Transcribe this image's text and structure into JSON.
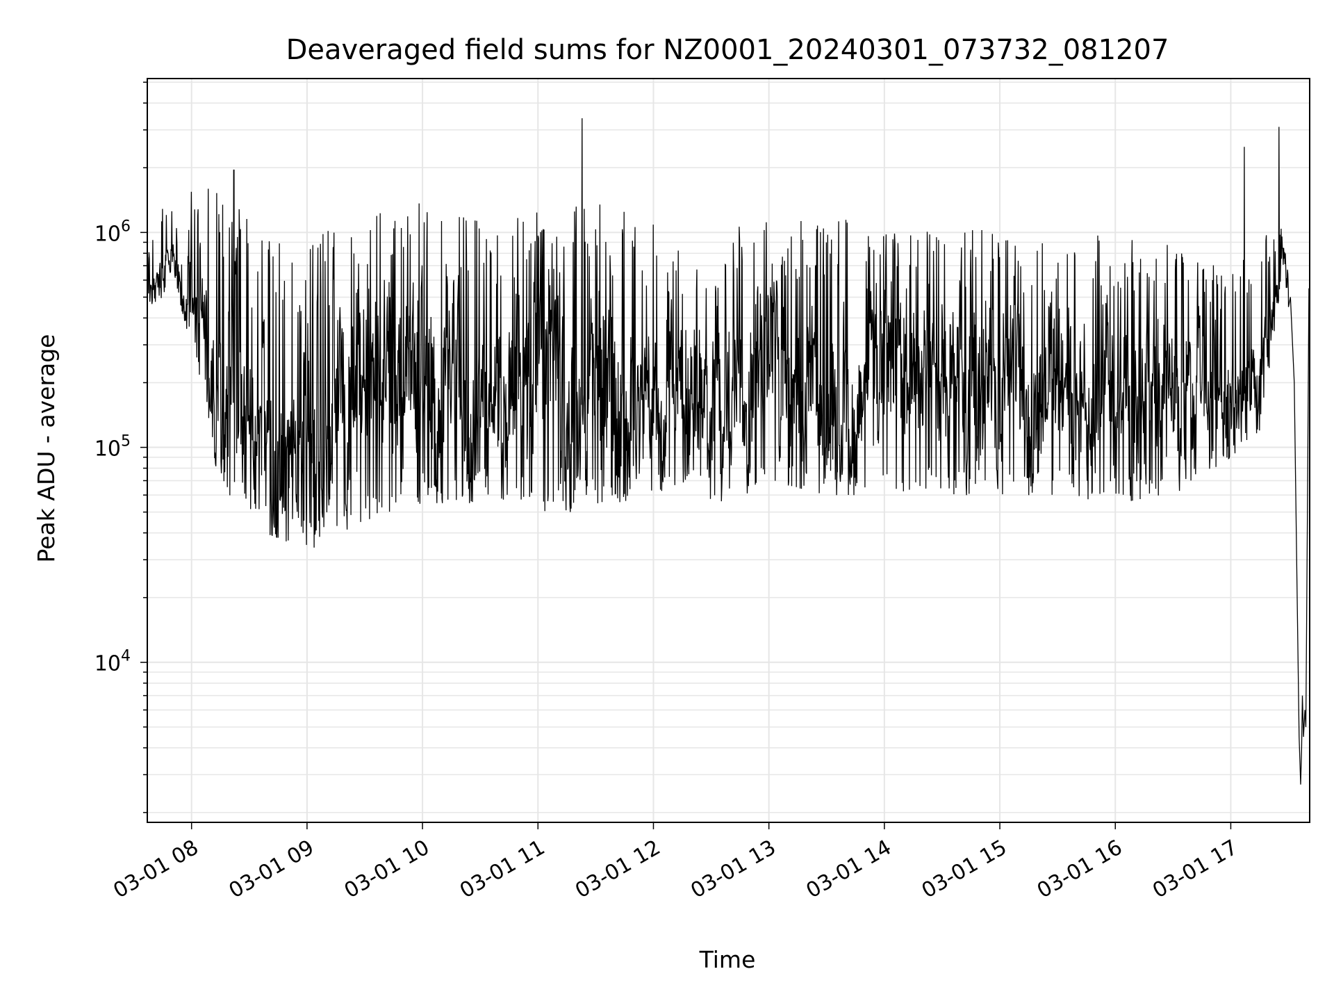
{
  "chart_data": {
    "type": "line",
    "title": "Deaveraged field sums for NZ0001_20240301_073732_081207",
    "xlabel": "Time",
    "ylabel": "Peak ADU - average",
    "y_scale": "log",
    "grid": true,
    "xlim": [
      "2024-03-01 07:37",
      "2024-03-01 17:41"
    ],
    "ylim": [
      1800,
      5200000
    ],
    "x_ticks": [
      {
        "value": "2024-03-01 08:00",
        "label": "03-01 08"
      },
      {
        "value": "2024-03-01 09:00",
        "label": "03-01 09"
      },
      {
        "value": "2024-03-01 10:00",
        "label": "03-01 10"
      },
      {
        "value": "2024-03-01 11:00",
        "label": "03-01 11"
      },
      {
        "value": "2024-03-01 12:00",
        "label": "03-01 12"
      },
      {
        "value": "2024-03-01 13:00",
        "label": "03-01 13"
      },
      {
        "value": "2024-03-01 14:00",
        "label": "03-01 14"
      },
      {
        "value": "2024-03-01 15:00",
        "label": "03-01 15"
      },
      {
        "value": "2024-03-01 16:00",
        "label": "03-01 16"
      },
      {
        "value": "2024-03-01 17:00",
        "label": "03-01 17"
      }
    ],
    "y_ticks": [
      {
        "value": 10000,
        "base": "10",
        "exp": "4"
      },
      {
        "value": 100000,
        "base": "10",
        "exp": "5"
      },
      {
        "value": 1000000,
        "base": "10",
        "exp": "6"
      }
    ],
    "series": [
      {
        "color": "#000000",
        "envelope": [
          {
            "x": "2024-03-01 07:37",
            "low": 450000,
            "high": 800000
          },
          {
            "x": "2024-03-01 07:45",
            "low": 500000,
            "high": 1300000
          },
          {
            "x": "2024-03-01 07:50",
            "low": 700000,
            "high": 1450000
          },
          {
            "x": "2024-03-01 07:55",
            "low": 420000,
            "high": 700000
          },
          {
            "x": "2024-03-01 08:00",
            "low": 300000,
            "high": 1600000
          },
          {
            "x": "2024-03-01 08:08",
            "low": 150000,
            "high": 1700000
          },
          {
            "x": "2024-03-01 08:15",
            "low": 60000,
            "high": 1500000
          },
          {
            "x": "2024-03-01 08:30",
            "low": 42000,
            "high": 1300000
          },
          {
            "x": "2024-03-01 08:45",
            "low": 38000,
            "high": 900000
          },
          {
            "x": "2024-03-01 09:00",
            "low": 33000,
            "high": 900000
          },
          {
            "x": "2024-03-01 09:15",
            "low": 38000,
            "high": 1100000
          },
          {
            "x": "2024-03-01 09:30",
            "low": 45000,
            "high": 1200000
          },
          {
            "x": "2024-03-01 09:45",
            "low": 50000,
            "high": 1400000
          },
          {
            "x": "2024-03-01 10:00",
            "low": 55000,
            "high": 1600000
          },
          {
            "x": "2024-03-01 10:20",
            "low": 55000,
            "high": 1500000
          },
          {
            "x": "2024-03-01 10:40",
            "low": 55000,
            "high": 1300000
          },
          {
            "x": "2024-03-01 11:00",
            "low": 50000,
            "high": 1300000
          },
          {
            "x": "2024-03-01 11:20",
            "low": 50000,
            "high": 1400000
          },
          {
            "x": "2024-03-01 11:40",
            "low": 55000,
            "high": 1400000
          },
          {
            "x": "2024-03-01 12:00",
            "low": 60000,
            "high": 1100000
          },
          {
            "x": "2024-03-01 12:20",
            "low": 60000,
            "high": 900000
          },
          {
            "x": "2024-03-01 12:40",
            "low": 55000,
            "high": 1100000
          },
          {
            "x": "2024-03-01 13:00",
            "low": 70000,
            "high": 1200000
          },
          {
            "x": "2024-03-01 13:30",
            "low": 60000,
            "high": 1200000
          },
          {
            "x": "2024-03-01 14:00",
            "low": 60000,
            "high": 1100000
          },
          {
            "x": "2024-03-01 14:30",
            "low": 60000,
            "high": 1000000
          },
          {
            "x": "2024-03-01 15:00",
            "low": 60000,
            "high": 1050000
          },
          {
            "x": "2024-03-01 15:30",
            "low": 60000,
            "high": 900000
          },
          {
            "x": "2024-03-01 16:00",
            "low": 55000,
            "high": 1000000
          },
          {
            "x": "2024-03-01 16:30",
            "low": 60000,
            "high": 900000
          },
          {
            "x": "2024-03-01 17:00",
            "low": 90000,
            "high": 700000
          },
          {
            "x": "2024-03-01 17:15",
            "low": 120000,
            "high": 900000
          },
          {
            "x": "2024-03-01 17:24",
            "low": 400000,
            "high": 1100000
          },
          {
            "x": "2024-03-01 17:27",
            "low": 700000,
            "high": 1200000
          },
          {
            "x": "2024-03-01 17:30",
            "low": 350000,
            "high": 600000
          }
        ],
        "tail": [
          {
            "x": "2024-03-01 17:30",
            "y": 450000
          },
          {
            "x": "2024-03-01 17:31",
            "y": 500000
          },
          {
            "x": "2024-03-01 17:33",
            "y": 200000
          },
          {
            "x": "2024-03-01 17:34.5",
            "y": 20000
          },
          {
            "x": "2024-03-01 17:35.5",
            "y": 4500
          },
          {
            "x": "2024-03-01 17:36.3",
            "y": 2700
          },
          {
            "x": "2024-03-01 17:36.8",
            "y": 4000
          },
          {
            "x": "2024-03-01 17:37.2",
            "y": 7000
          },
          {
            "x": "2024-03-01 17:37.8",
            "y": 4500
          },
          {
            "x": "2024-03-01 17:38.5",
            "y": 6000
          },
          {
            "x": "2024-03-01 17:39",
            "y": 5000
          },
          {
            "x": "2024-03-01 17:40",
            "y": 80000
          },
          {
            "x": "2024-03-01 17:40.6",
            "y": 550000
          }
        ],
        "spikes": [
          {
            "x": "2024-03-01 08:22",
            "y": 1950000
          },
          {
            "x": "2024-03-01 11:23",
            "y": 3400000
          },
          {
            "x": "2024-03-01 17:07",
            "y": 2500000
          },
          {
            "x": "2024-03-01 17:25",
            "y": 3100000
          }
        ]
      }
    ]
  }
}
